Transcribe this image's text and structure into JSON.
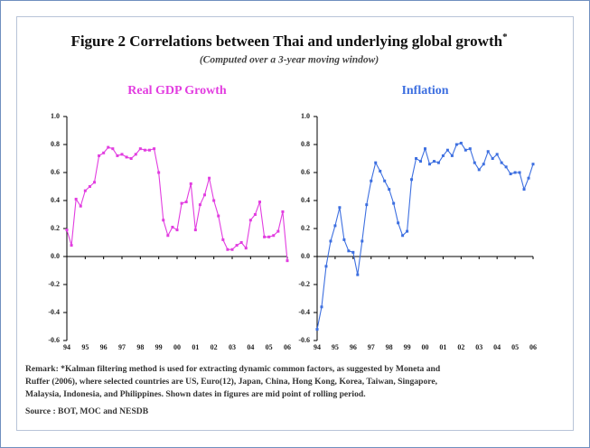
{
  "figure": {
    "title": "Figure 2  Correlations between Thai and underlying global growth",
    "title_mark": "*",
    "subtitle": "(Computed over a 3-year moving window)"
  },
  "chart_data": [
    {
      "type": "line",
      "title": "Real GDP Growth",
      "color": "#e23de0",
      "x": [
        1994,
        1994.25,
        1994.5,
        1994.75,
        1995,
        1995.25,
        1995.5,
        1995.75,
        1996,
        1996.25,
        1996.5,
        1996.75,
        1997,
        1997.25,
        1997.5,
        1997.75,
        1998,
        1998.25,
        1998.5,
        1998.75,
        1999,
        1999.25,
        1999.5,
        1999.75,
        2000,
        2000.25,
        2000.5,
        2000.75,
        2001,
        2001.25,
        2001.5,
        2001.75,
        2002,
        2002.25,
        2002.5,
        2002.75,
        2003,
        2003.25,
        2003.5,
        2003.75,
        2004,
        2004.25,
        2004.5,
        2004.75,
        2005,
        2005.25,
        2005.5,
        2005.75,
        2006
      ],
      "values": [
        0.19,
        0.08,
        0.41,
        0.36,
        0.47,
        0.5,
        0.53,
        0.72,
        0.74,
        0.78,
        0.77,
        0.72,
        0.73,
        0.71,
        0.7,
        0.73,
        0.77,
        0.76,
        0.76,
        0.77,
        0.6,
        0.26,
        0.15,
        0.21,
        0.19,
        0.38,
        0.39,
        0.52,
        0.19,
        0.37,
        0.44,
        0.56,
        0.4,
        0.29,
        0.12,
        0.05,
        0.05,
        0.08,
        0.1,
        0.06,
        0.26,
        0.3,
        0.39,
        0.14,
        0.14,
        0.15,
        0.18,
        0.32,
        -0.03
      ],
      "xlim": [
        1994,
        2006
      ],
      "xticks": [
        {
          "value": 1994,
          "label": "94"
        },
        {
          "value": 1995,
          "label": "95"
        },
        {
          "value": 1996,
          "label": "96"
        },
        {
          "value": 1997,
          "label": "97"
        },
        {
          "value": 1998,
          "label": "98"
        },
        {
          "value": 1999,
          "label": "99"
        },
        {
          "value": 2000,
          "label": "00"
        },
        {
          "value": 2001,
          "label": "01"
        },
        {
          "value": 2002,
          "label": "02"
        },
        {
          "value": 2003,
          "label": "03"
        },
        {
          "value": 2004,
          "label": "04"
        },
        {
          "value": 2005,
          "label": "05"
        },
        {
          "value": 2006,
          "label": "06"
        }
      ],
      "ylim": [
        -0.6,
        1
      ],
      "yticks": [
        {
          "value": 1,
          "label": "1.0"
        },
        0.8,
        0.6,
        0.4,
        0.2,
        {
          "value": 0,
          "label": "0.0"
        },
        -0.2,
        -0.4,
        -0.6
      ]
    },
    {
      "type": "line",
      "title": "Inflation",
      "color": "#3d6fe0",
      "x": [
        1994,
        1994.25,
        1994.5,
        1994.75,
        1995,
        1995.25,
        1995.5,
        1995.75,
        1996,
        1996.25,
        1996.5,
        1996.75,
        1997,
        1997.25,
        1997.5,
        1997.75,
        1998,
        1998.25,
        1998.5,
        1998.75,
        1999,
        1999.25,
        1999.5,
        1999.75,
        2000,
        2000.25,
        2000.5,
        2000.75,
        2001,
        2001.25,
        2001.5,
        2001.75,
        2002,
        2002.25,
        2002.5,
        2002.75,
        2003,
        2003.25,
        2003.5,
        2003.75,
        2004,
        2004.25,
        2004.5,
        2004.75,
        2005,
        2005.25,
        2005.5,
        2005.75,
        2006
      ],
      "values": [
        -0.52,
        -0.36,
        -0.07,
        0.11,
        0.22,
        0.35,
        0.12,
        0.04,
        0.03,
        -0.13,
        0.11,
        0.37,
        0.54,
        0.67,
        0.61,
        0.54,
        0.48,
        0.38,
        0.24,
        0.15,
        0.18,
        0.55,
        0.7,
        0.68,
        0.77,
        0.66,
        0.68,
        0.67,
        0.72,
        0.76,
        0.72,
        0.8,
        0.81,
        0.76,
        0.77,
        0.67,
        0.62,
        0.66,
        0.75,
        0.7,
        0.73,
        0.67,
        0.64,
        0.59,
        0.6,
        0.6,
        0.48,
        0.56,
        0.66
      ],
      "xlim": [
        1994,
        2006
      ],
      "xticks": [
        {
          "value": 1994,
          "label": "94"
        },
        {
          "value": 1995,
          "label": "95"
        },
        {
          "value": 1996,
          "label": "96"
        },
        {
          "value": 1997,
          "label": "97"
        },
        {
          "value": 1998,
          "label": "98"
        },
        {
          "value": 1999,
          "label": "99"
        },
        {
          "value": 2000,
          "label": "00"
        },
        {
          "value": 2001,
          "label": "01"
        },
        {
          "value": 2002,
          "label": "02"
        },
        {
          "value": 2003,
          "label": "03"
        },
        {
          "value": 2004,
          "label": "04"
        },
        {
          "value": 2005,
          "label": "05"
        },
        {
          "value": 2006,
          "label": "06"
        }
      ],
      "ylim": [
        -0.6,
        1
      ],
      "yticks": [
        {
          "value": 1,
          "label": "1.0"
        },
        0.8,
        0.6,
        0.4,
        0.2,
        {
          "value": 0,
          "label": "0.0"
        },
        -0.2,
        -0.4,
        -0.6
      ]
    }
  ],
  "remark": [
    "Remark: *Kalman filtering method is used for extracting dynamic common factors, as suggested by Moneta and",
    "Ruffer (2006), where selected countries are US, Euro(12), Japan, China, Hong Kong, Korea, Taiwan, Singapore,",
    "Malaysia, Indonesia, and Philippines. Shown dates in figures are mid point of rolling period."
  ],
  "source": "Source : BOT, MOC and NESDB"
}
